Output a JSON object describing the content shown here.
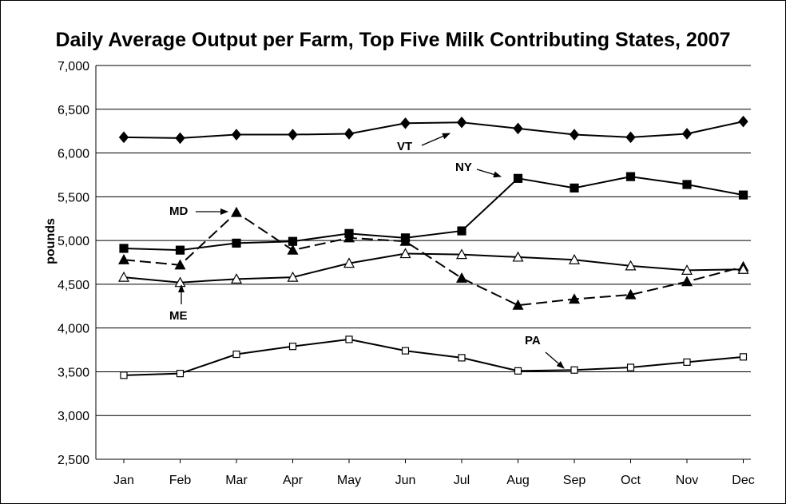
{
  "chart_data": {
    "type": "line",
    "title": "Daily Average Output per Farm, Top Five Milk Contributing States, 2007",
    "xlabel": "",
    "ylabel": "pounds",
    "categories": [
      "Jan",
      "Feb",
      "Mar",
      "Apr",
      "May",
      "Jun",
      "Jul",
      "Aug",
      "Sep",
      "Oct",
      "Nov",
      "Dec"
    ],
    "ylim": [
      2500,
      7000
    ],
    "yticks": [
      "2,500",
      "3,000",
      "3,500",
      "4,000",
      "4,500",
      "5,000",
      "5,500",
      "6,000",
      "6,500",
      "7,000"
    ],
    "grid": "horizontal",
    "series": [
      {
        "name": "VT",
        "marker": "diamond-filled",
        "dash": "solid",
        "values": [
          6180,
          6170,
          6210,
          6210,
          6220,
          6340,
          6350,
          6280,
          6210,
          6180,
          6220,
          6360
        ]
      },
      {
        "name": "NY",
        "marker": "square-filled",
        "dash": "solid",
        "values": [
          4910,
          4890,
          4970,
          4990,
          5080,
          5030,
          5110,
          5710,
          5600,
          5730,
          5640,
          5520
        ]
      },
      {
        "name": "MD",
        "marker": "triangle-filled",
        "dash": "dashed",
        "values": [
          4780,
          4720,
          5320,
          4890,
          5030,
          4990,
          4570,
          4260,
          4330,
          4380,
          4530,
          4700
        ]
      },
      {
        "name": "ME",
        "marker": "triangle-open",
        "dash": "solid",
        "values": [
          4580,
          4520,
          4560,
          4580,
          4740,
          4850,
          4840,
          4810,
          4780,
          4710,
          4660,
          4670
        ]
      },
      {
        "name": "PA",
        "marker": "square-open",
        "dash": "solid",
        "values": [
          3460,
          3480,
          3700,
          3790,
          3870,
          3740,
          3660,
          3510,
          3520,
          3550,
          3610,
          3670
        ]
      }
    ],
    "annotations": [
      {
        "label": "VT",
        "series": "VT"
      },
      {
        "label": "NY",
        "series": "NY"
      },
      {
        "label": "MD",
        "series": "MD"
      },
      {
        "label": "ME",
        "series": "ME"
      },
      {
        "label": "PA",
        "series": "PA"
      }
    ]
  }
}
